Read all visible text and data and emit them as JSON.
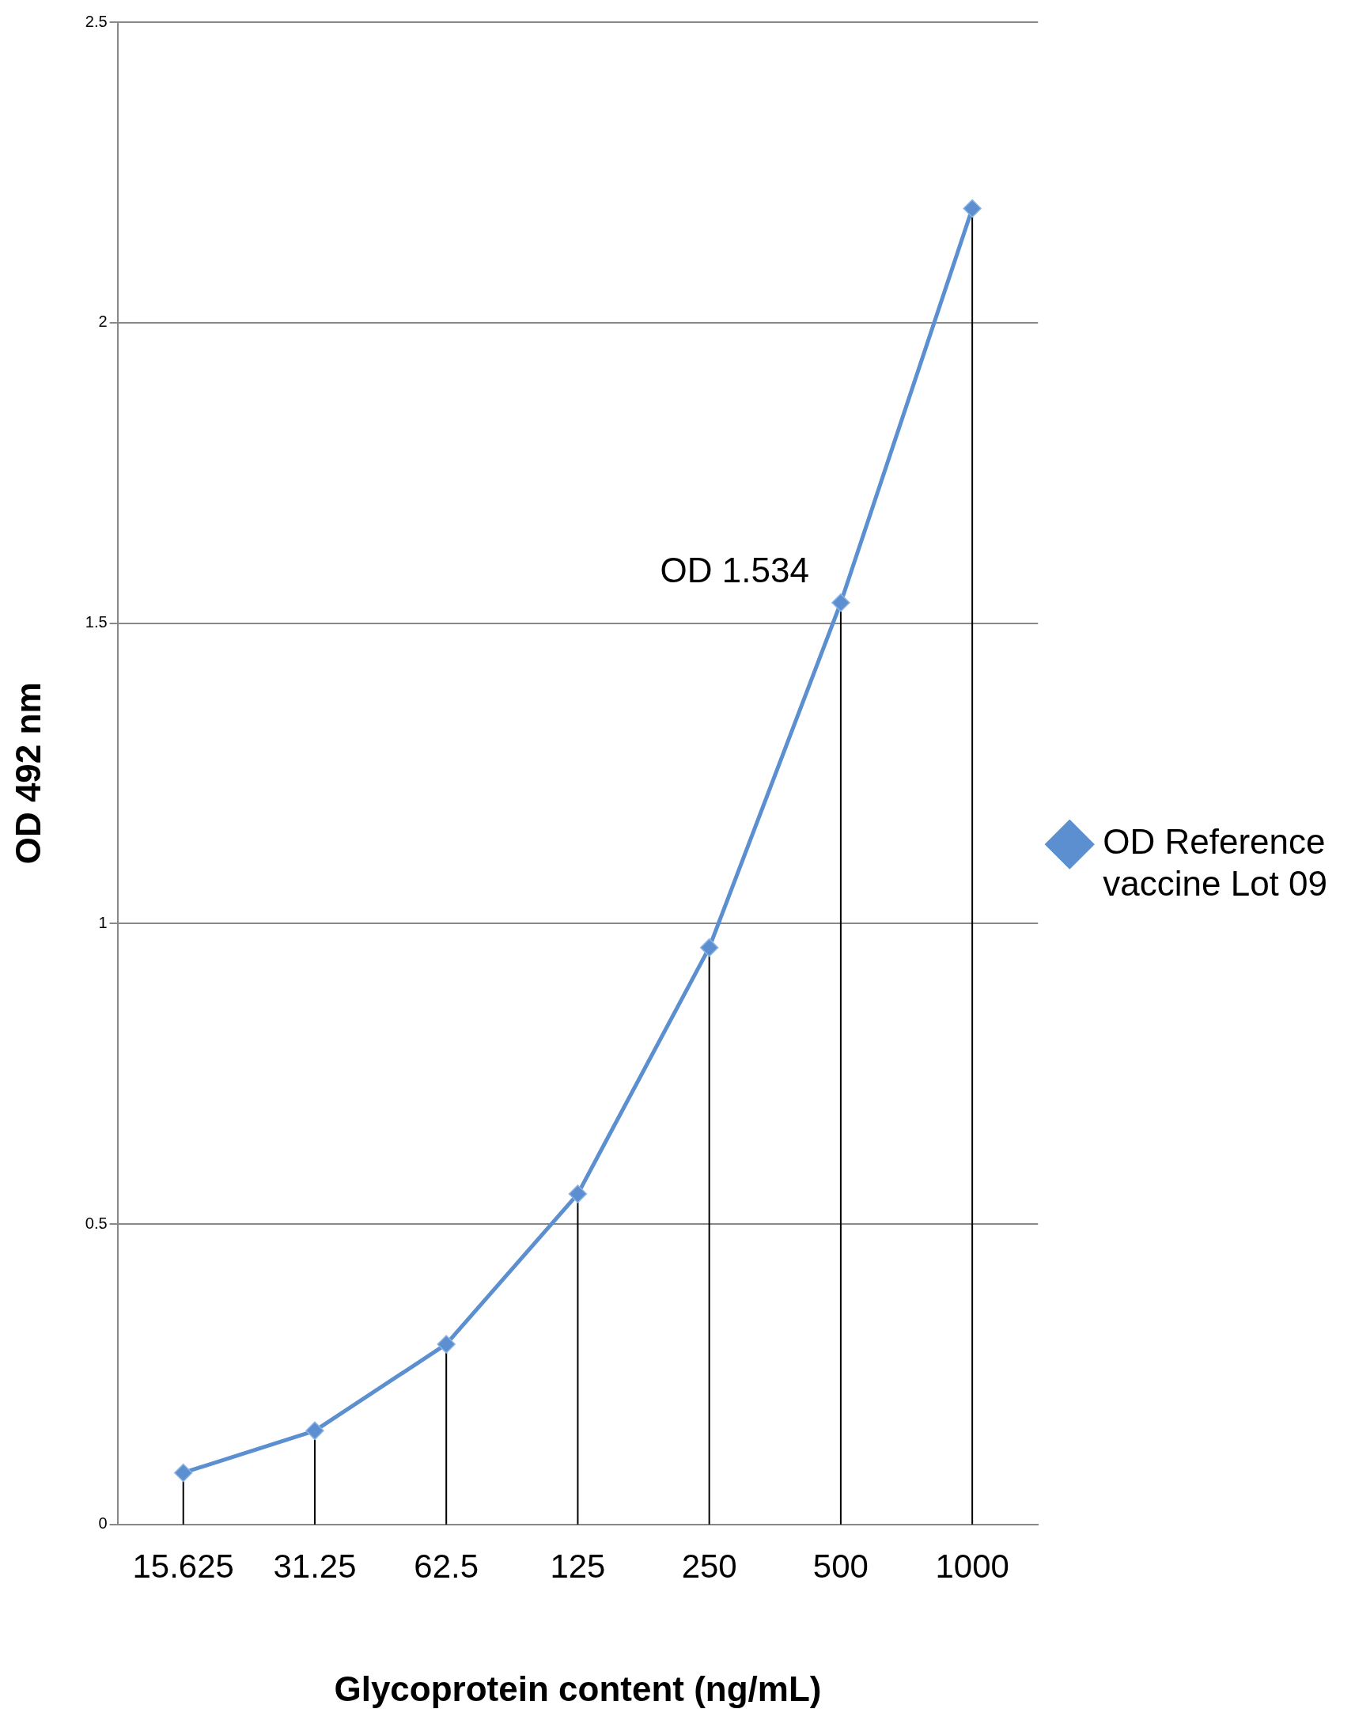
{
  "chart_data": {
    "type": "line",
    "xlabel": "Glycoprotein content (ng/mL)",
    "ylabel": "OD 492 nm",
    "categories": [
      "15.625",
      "31.25",
      "62.5",
      "125",
      "250",
      "500",
      "1000"
    ],
    "series": [
      {
        "name": "OD Reference vaccine Lot 09",
        "color": "#5b8fd0",
        "values": [
          0.086,
          0.156,
          0.3,
          0.55,
          0.96,
          1.534,
          2.19
        ],
        "errors": [
          [
            0,
            0.086
          ],
          [
            0,
            0.156
          ],
          [
            0,
            0.3
          ],
          [
            0,
            0.55
          ],
          [
            0,
            0.96
          ],
          [
            0,
            1.534
          ],
          [
            0,
            2.19
          ]
        ]
      }
    ],
    "ylim": [
      0,
      2.5
    ],
    "yticks": [
      0,
      0.5,
      1,
      1.5,
      2,
      2.5
    ],
    "grid": "y",
    "legend": "right",
    "marker": "diamond",
    "line_style": "solid",
    "annotations": [
      {
        "text": "OD 1.534",
        "x": "500",
        "y": 1.534
      }
    ]
  }
}
